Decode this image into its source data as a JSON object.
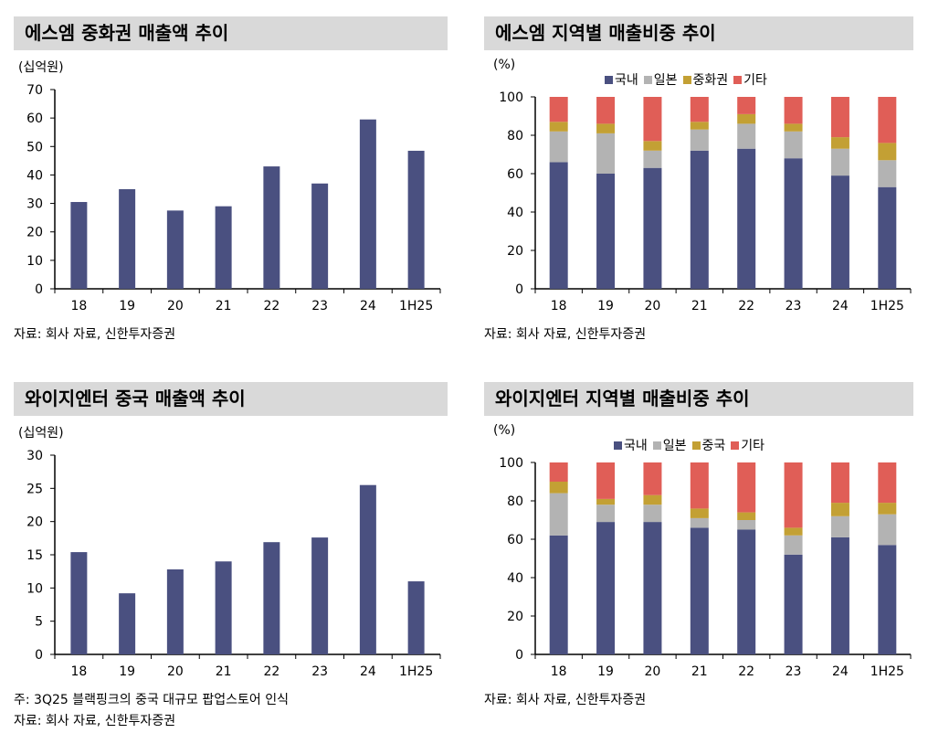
{
  "colors": {
    "bar": "#4a5080",
    "domestic": "#4a5080",
    "japan": "#b3b3b3",
    "china": "#c3a034",
    "other": "#e05e57",
    "title_bg": "#d9d9d9"
  },
  "panels": [
    {
      "title": "에스엠 중화권 매출액 추이",
      "unit": "(십억원)",
      "notes": [
        "자료: 회사 자료, 신한투자증권"
      ]
    },
    {
      "title": "에스엠 지역별 매출비중 추이",
      "unit": "(%)",
      "notes": [
        "자료: 회사 자료, 신한투자증권"
      ]
    },
    {
      "title": "와이지엔터 중국 매출액 추이",
      "unit": "(십억원)",
      "notes": [
        "주: 3Q25 블랙핑크의 중국 대규모 팝업스토어 인식",
        "자료: 회사 자료, 신한투자증권"
      ]
    },
    {
      "title": "와이지엔터 지역별 매출비중 추이",
      "unit": "(%)",
      "notes": [
        "자료: 회사 자료, 신한투자증권"
      ]
    }
  ],
  "chart_data": [
    {
      "type": "bar",
      "title": "에스엠 중화권 매출액 추이",
      "ylabel": "(십억원)",
      "categories": [
        "18",
        "19",
        "20",
        "21",
        "22",
        "23",
        "24",
        "1H25"
      ],
      "values": [
        30.5,
        35,
        27.5,
        29,
        43,
        37,
        59.5,
        48.5
      ],
      "ylim": [
        0,
        70
      ],
      "yticks": [
        0,
        10,
        20,
        30,
        40,
        50,
        60,
        70
      ],
      "grid": false
    },
    {
      "type": "bar",
      "stacked": true,
      "title": "에스엠 지역별 매출비중 추이",
      "ylabel": "(%)",
      "categories": [
        "18",
        "19",
        "20",
        "21",
        "22",
        "23",
        "24",
        "1H25"
      ],
      "ylim": [
        0,
        100
      ],
      "yticks": [
        0,
        20,
        40,
        60,
        80,
        100
      ],
      "grid": false,
      "legend": "top",
      "series": [
        {
          "name": "국내",
          "values": [
            66,
            60,
            63,
            72,
            73,
            68,
            59,
            53
          ]
        },
        {
          "name": "일본",
          "values": [
            16,
            21,
            9,
            11,
            13,
            14,
            14,
            14
          ]
        },
        {
          "name": "중화권",
          "values": [
            5,
            5,
            5,
            4,
            5,
            4,
            6,
            9
          ]
        },
        {
          "name": "기타",
          "values": [
            13,
            14,
            23,
            13,
            9,
            14,
            21,
            24
          ]
        }
      ]
    },
    {
      "type": "bar",
      "title": "와이지엔터 중국 매출액 추이",
      "ylabel": "(십억원)",
      "categories": [
        "18",
        "19",
        "20",
        "21",
        "22",
        "23",
        "24",
        "1H25"
      ],
      "values": [
        15.4,
        9.2,
        12.8,
        14,
        16.9,
        17.6,
        25.5,
        11
      ],
      "ylim": [
        0,
        30
      ],
      "yticks": [
        0,
        5,
        10,
        15,
        20,
        25,
        30
      ],
      "grid": false
    },
    {
      "type": "bar",
      "stacked": true,
      "title": "와이지엔터 지역별 매출비중 추이",
      "ylabel": "(%)",
      "categories": [
        "18",
        "19",
        "20",
        "21",
        "22",
        "23",
        "24",
        "1H25"
      ],
      "ylim": [
        0,
        100
      ],
      "yticks": [
        0,
        20,
        40,
        60,
        80,
        100
      ],
      "grid": false,
      "legend": "top",
      "series": [
        {
          "name": "국내",
          "values": [
            62,
            69,
            69,
            66,
            65,
            52,
            61,
            57
          ]
        },
        {
          "name": "일본",
          "values": [
            22,
            9,
            9,
            5,
            5,
            10,
            11,
            16
          ]
        },
        {
          "name": "중국",
          "values": [
            6,
            3,
            5,
            5,
            4,
            4,
            7,
            6
          ]
        },
        {
          "name": "기타",
          "values": [
            10,
            19,
            17,
            24,
            26,
            34,
            21,
            21
          ]
        }
      ]
    }
  ]
}
